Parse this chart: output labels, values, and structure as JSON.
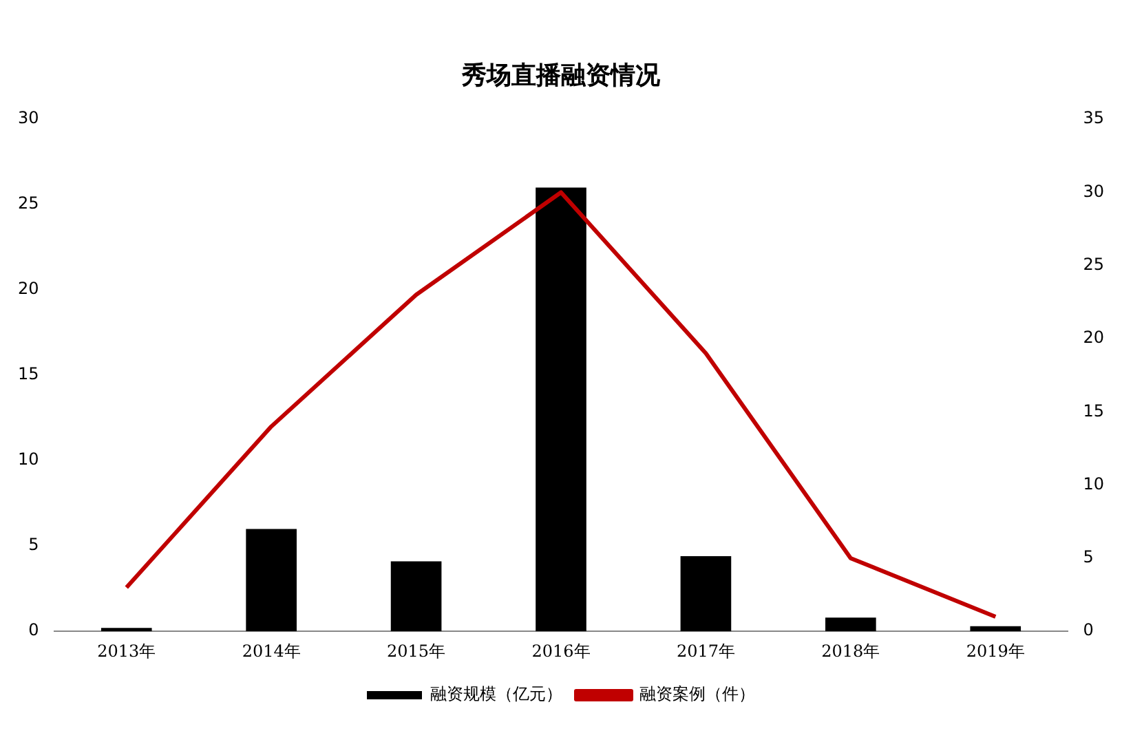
{
  "chart_data": {
    "type": "bar",
    "title": "秀场直播融资情况",
    "categories": [
      "2013年",
      "2014年",
      "2015年",
      "2016年",
      "2017年",
      "2018年",
      "2019年"
    ],
    "series": [
      {
        "name": "融资规模（亿元）",
        "color": "#000000",
        "values": [
          0.2,
          6.0,
          4.1,
          26.0,
          4.4,
          0.8,
          0.3
        ]
      },
      {
        "name": "融资案例（件）",
        "type": "line",
        "axis": "y2",
        "color": "#c00000",
        "values": [
          3,
          14,
          23,
          30,
          19,
          5,
          1
        ],
        "marker": "none"
      }
    ],
    "ylim": [
      0,
      30
    ],
    "yticks": [
      0,
      5,
      10,
      15,
      20,
      25,
      30
    ],
    "y2lim": [
      0,
      35
    ],
    "y2ticks": [
      0,
      5,
      10,
      15,
      20,
      25,
      30,
      35
    ],
    "grid": false,
    "legend": "bottom"
  }
}
